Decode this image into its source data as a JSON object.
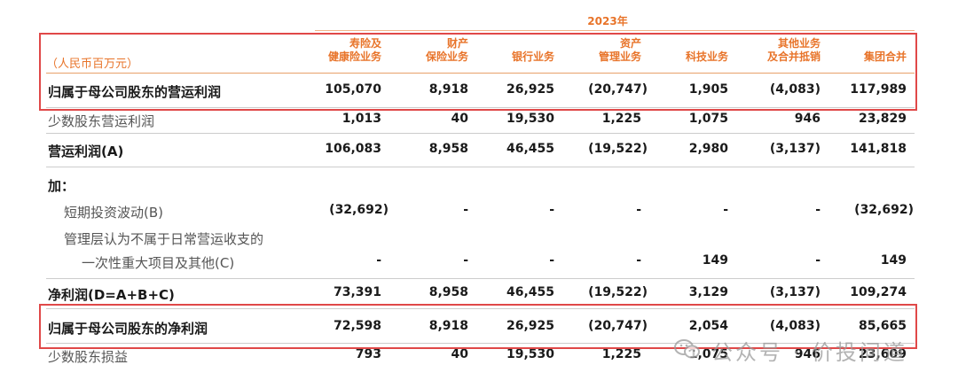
{
  "year": "2023年",
  "unit": "（人民币百万元）",
  "columns": [
    {
      "line1": "寿险及",
      "line2": "健康险业务"
    },
    {
      "line1": "财产",
      "line2": "保险业务"
    },
    {
      "line1": "",
      "line2": "银行业务"
    },
    {
      "line1": "资产",
      "line2": "管理业务"
    },
    {
      "line1": "",
      "line2": "科技业务"
    },
    {
      "line1": "其他业务",
      "line2": "及合并抵销"
    },
    {
      "line1": "",
      "line2": "集团合并"
    }
  ],
  "rows": [
    {
      "label": "归属于母公司股东的营运利润",
      "values": [
        "105,070",
        "8,918",
        "26,925",
        "(20,747)",
        "1,905",
        "(4,083)",
        "117,989"
      ]
    },
    {
      "label": "少数股东营运利润",
      "values": [
        "1,013",
        "40",
        "19,530",
        "1,225",
        "1,075",
        "946",
        "23,829"
      ]
    },
    {
      "label": "营运利润(A)",
      "values": [
        "106,083",
        "8,958",
        "46,455",
        "(19,522)",
        "2,980",
        "(3,137)",
        "141,818"
      ]
    },
    {
      "label": "加：",
      "values": [
        "",
        "",
        "",
        "",
        "",
        "",
        ""
      ]
    },
    {
      "label": "短期投资波动(B)",
      "values": [
        "(32,692)",
        "-",
        "-",
        "-",
        "-",
        "-",
        "(32,692)"
      ]
    },
    {
      "label": "管理层认为不属于日常营运收支的",
      "values": [
        "",
        "",
        "",
        "",
        "",
        "",
        ""
      ]
    },
    {
      "label": "一次性重大项目及其他(C)",
      "values": [
        "-",
        "-",
        "-",
        "-",
        "149",
        "-",
        "149"
      ]
    },
    {
      "label": "净利润(D=A+B+C)",
      "values": [
        "73,391",
        "8,958",
        "46,455",
        "(19,522)",
        "3,129",
        "(3,137)",
        "109,274"
      ]
    },
    {
      "label": "归属于母公司股东的净利润",
      "values": [
        "72,598",
        "8,918",
        "26,925",
        "(20,747)",
        "2,054",
        "(4,083)",
        "85,665"
      ]
    },
    {
      "label": "少数股东损益",
      "values": [
        "793",
        "40",
        "19,530",
        "1,225",
        "1,075",
        "946",
        "23,609"
      ]
    }
  ],
  "watermark": "公众号 · 价投问道"
}
